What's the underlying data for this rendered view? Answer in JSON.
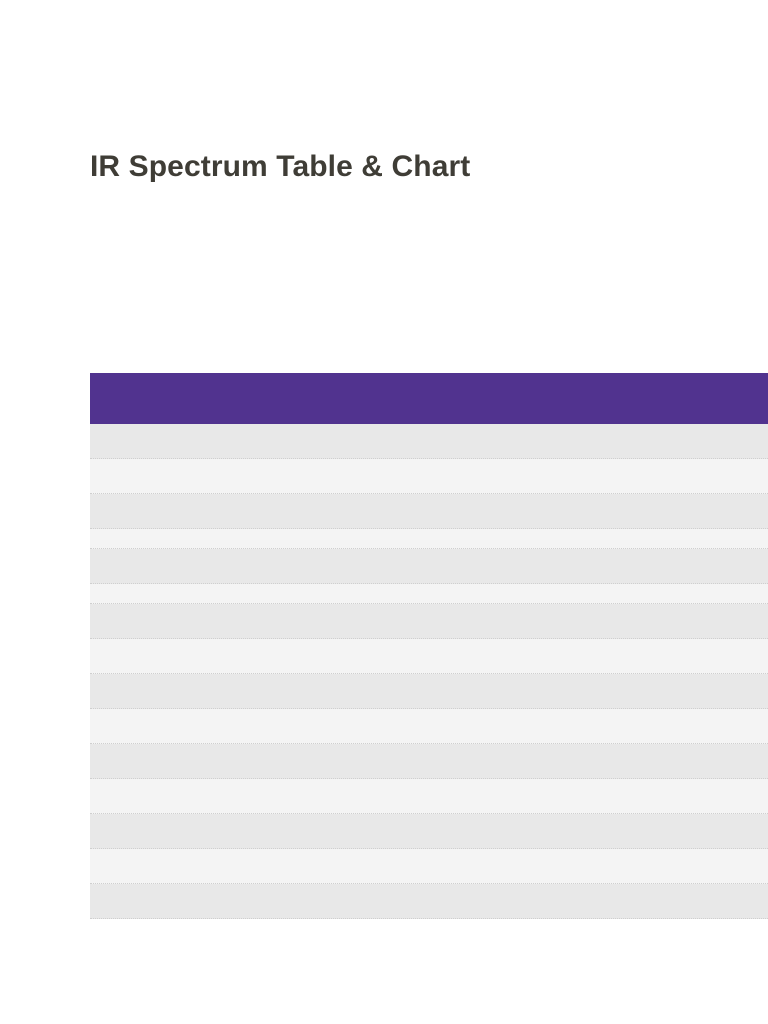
{
  "page": {
    "title": "IR Spectrum Table & Chart"
  },
  "colors": {
    "title_text": "#3f3d36",
    "table_header_bg": "#51338f",
    "row_odd_bg": "#e8e8e8",
    "row_even_bg": "#f4f4f4",
    "row_divider": "#cfcfcf"
  },
  "table": {
    "header": [
      ""
    ],
    "rows": [
      {
        "cells": [
          ""
        ]
      },
      {
        "cells": [
          ""
        ]
      },
      {
        "cells": [
          ""
        ]
      },
      {
        "cells": [
          ""
        ]
      },
      {
        "cells": [
          ""
        ]
      },
      {
        "cells": [
          ""
        ]
      },
      {
        "cells": [
          ""
        ]
      },
      {
        "cells": [
          ""
        ]
      },
      {
        "cells": [
          ""
        ]
      },
      {
        "cells": [
          ""
        ]
      },
      {
        "cells": [
          ""
        ]
      },
      {
        "cells": [
          ""
        ]
      },
      {
        "cells": [
          ""
        ]
      },
      {
        "cells": [
          ""
        ]
      },
      {
        "cells": [
          ""
        ]
      }
    ]
  }
}
